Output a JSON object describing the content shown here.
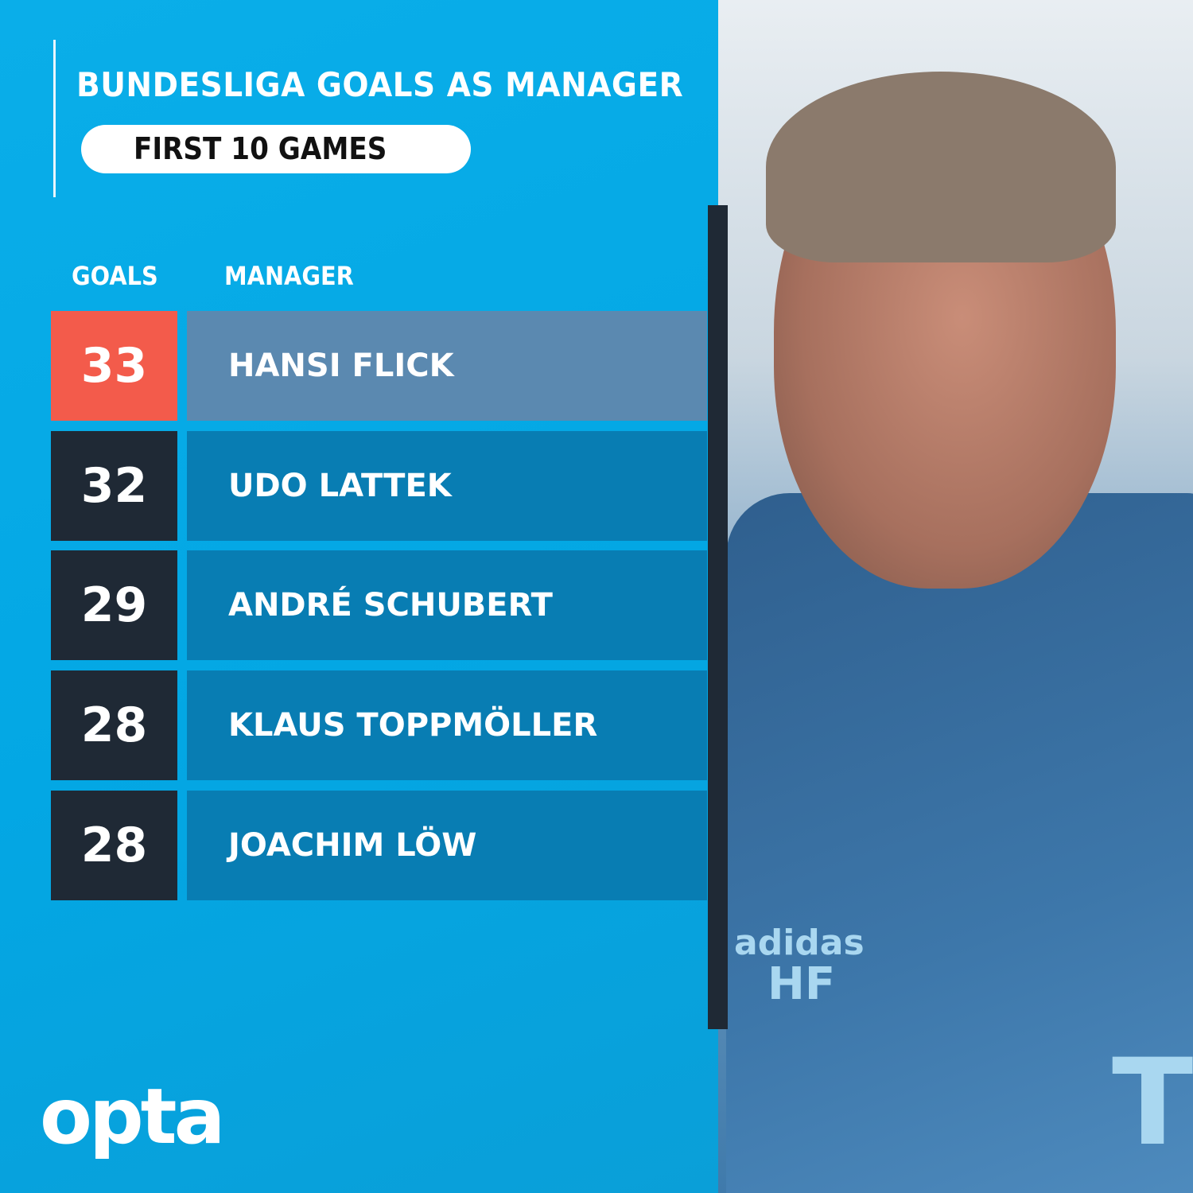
{
  "title": "BUNDESLIGA GOALS AS MANAGER",
  "subtitle": "FIRST 10 GAMES",
  "headers": {
    "goals": "GOALS",
    "manager": "MANAGER"
  },
  "rows": [
    {
      "goals": "33",
      "manager": "HANSI FLICK",
      "highlight": true
    },
    {
      "goals": "32",
      "manager": "UDO LATTEK",
      "highlight": false
    },
    {
      "goals": "29",
      "manager": "ANDRÉ SCHUBERT",
      "highlight": false
    },
    {
      "goals": "28",
      "manager": "KLAUS TOPPMÖLLER",
      "highlight": false
    },
    {
      "goals": "28",
      "manager": "JOACHIM LÖW",
      "highlight": false
    }
  ],
  "logo": "opta",
  "photo": {
    "jacket_text": "adidas",
    "initials": "HF",
    "sponsor": "T"
  },
  "colors": {
    "background": "#03a7e4",
    "highlight_goals": "#f35b4b",
    "highlight_name": "#5b89b0",
    "goals_box": "#1f2935",
    "name_box": "#087db3"
  }
}
